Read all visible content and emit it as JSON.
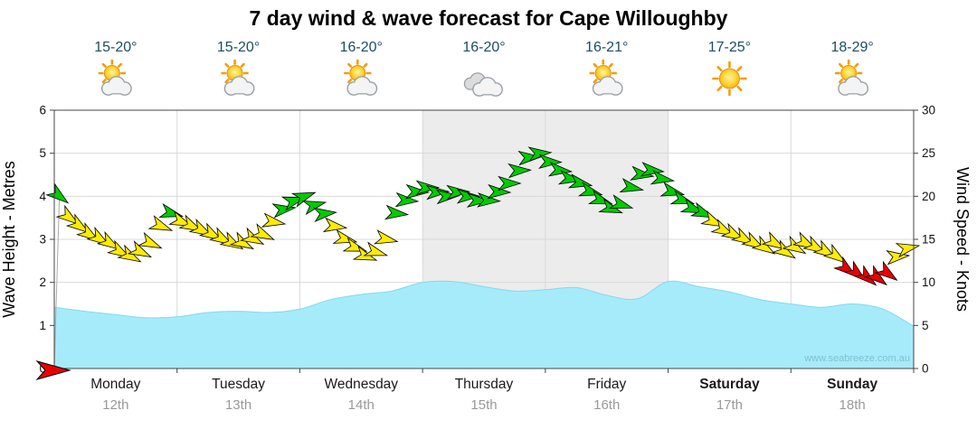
{
  "title": "7 day wind & wave forecast for Cape Willoughby",
  "watermark": "www.seabreeze.com.au",
  "axes": {
    "left_label": "Wave Height - Metres",
    "right_label": "Wind Speed - Knots",
    "left_ticks": [
      0,
      1,
      2,
      3,
      4,
      5,
      6
    ],
    "right_ticks": [
      0,
      5,
      10,
      15,
      20,
      25,
      30
    ]
  },
  "days": [
    {
      "name": "Monday",
      "date": "12th",
      "temp": "15-20°",
      "icon": "partly-cloudy",
      "bold": false
    },
    {
      "name": "Tuesday",
      "date": "13th",
      "temp": "15-20°",
      "icon": "partly-cloudy",
      "bold": false
    },
    {
      "name": "Wednesday",
      "date": "14th",
      "temp": "16-20°",
      "icon": "partly-cloudy",
      "bold": false
    },
    {
      "name": "Thursday",
      "date": "15th",
      "temp": "16-20°",
      "icon": "cloudy",
      "bold": false
    },
    {
      "name": "Friday",
      "date": "16th",
      "temp": "16-21°",
      "icon": "partly-cloudy",
      "bold": false
    },
    {
      "name": "Saturday",
      "date": "17th",
      "temp": "17-25°",
      "icon": "sunny",
      "bold": true
    },
    {
      "name": "Sunday",
      "date": "18th",
      "temp": "18-29°",
      "icon": "partly-cloudy",
      "bold": true
    }
  ],
  "colors": {
    "wave_fill": "#a6ebfa",
    "wave_stroke": "#82d9ee",
    "arrow_yellow": "#ffec00",
    "arrow_green": "#00cc00",
    "arrow_red": "#e80000",
    "temp_text": "#1b4e63",
    "day_text": "#1a1a1a",
    "date_text": "#999999",
    "grid": "#d9d9d9",
    "axis": "#444444",
    "day_shading": "#ececec",
    "watermark_text": "#86bdd2",
    "start_line": "#aaaaaa"
  },
  "chart_data": {
    "type": "area+wind-arrows",
    "x_hours_range": [
      0,
      168
    ],
    "wave_axis_range_m": [
      0,
      6
    ],
    "wind_axis_range_knots": [
      0,
      30
    ],
    "shaded_day_indices": [
      3,
      4
    ],
    "wave_height_m": {
      "step_hours": 6,
      "values": [
        1.42,
        1.33,
        1.25,
        1.18,
        1.2,
        1.3,
        1.33,
        1.3,
        1.38,
        1.6,
        1.72,
        1.8,
        2.0,
        2.02,
        1.9,
        1.8,
        1.83,
        1.88,
        1.7,
        1.62,
        2.02,
        1.9,
        1.78,
        1.6,
        1.5,
        1.42,
        1.5,
        1.38,
        0.98
      ]
    },
    "wind_speed_knots": {
      "step_hours": 2,
      "offset_hours": 1,
      "values": [
        20,
        17.5,
        16.5,
        15.5,
        15,
        14.5,
        13.5,
        13,
        13.5,
        14.5,
        16.5,
        18,
        17,
        16.5,
        16,
        15.5,
        15,
        14.5,
        14.5,
        15,
        15.5,
        17,
        18.5,
        19.5,
        20,
        19,
        18,
        16.5,
        15,
        14,
        13,
        13.5,
        15,
        18,
        19.5,
        20.5,
        21,
        20.5,
        20,
        20.5,
        20,
        19.5,
        19.5,
        20.5,
        21.5,
        23,
        24.5,
        25,
        24,
        23,
        22,
        21.5,
        20.5,
        19.5,
        18.5,
        19,
        21,
        22.5,
        23,
        22,
        20.5,
        19.5,
        18.5,
        18,
        17,
        16,
        15.5,
        15,
        14.5,
        14,
        14.5,
        13.5,
        14,
        14.5,
        14,
        13.5,
        13,
        11.5,
        11,
        10.5,
        10.5,
        11,
        13,
        14
      ],
      "directions_deg": [
        38,
        36,
        35,
        34,
        33,
        32,
        30,
        28,
        26,
        24,
        22,
        15,
        22,
        26,
        28,
        30,
        30,
        29,
        28,
        27,
        25,
        10,
        -8,
        -16,
        -20,
        -14,
        -6,
        8,
        14,
        18,
        20,
        17,
        12,
        6,
        4,
        2,
        0,
        -2,
        -3,
        -2,
        0,
        2,
        3,
        2,
        0,
        -2,
        -3,
        -4,
        2,
        6,
        9,
        12,
        15,
        18,
        20,
        17,
        12,
        8,
        6,
        9,
        14,
        17,
        20,
        22,
        25,
        27,
        28,
        30,
        30,
        32,
        30,
        32,
        30,
        28,
        30,
        32,
        35,
        38,
        40,
        40,
        38,
        36,
        -5,
        -12
      ],
      "thresholds": {
        "red_max": 11.5,
        "yellow_max": 17.5
      }
    },
    "zero_wind_marker": {
      "knots": 0
    }
  }
}
